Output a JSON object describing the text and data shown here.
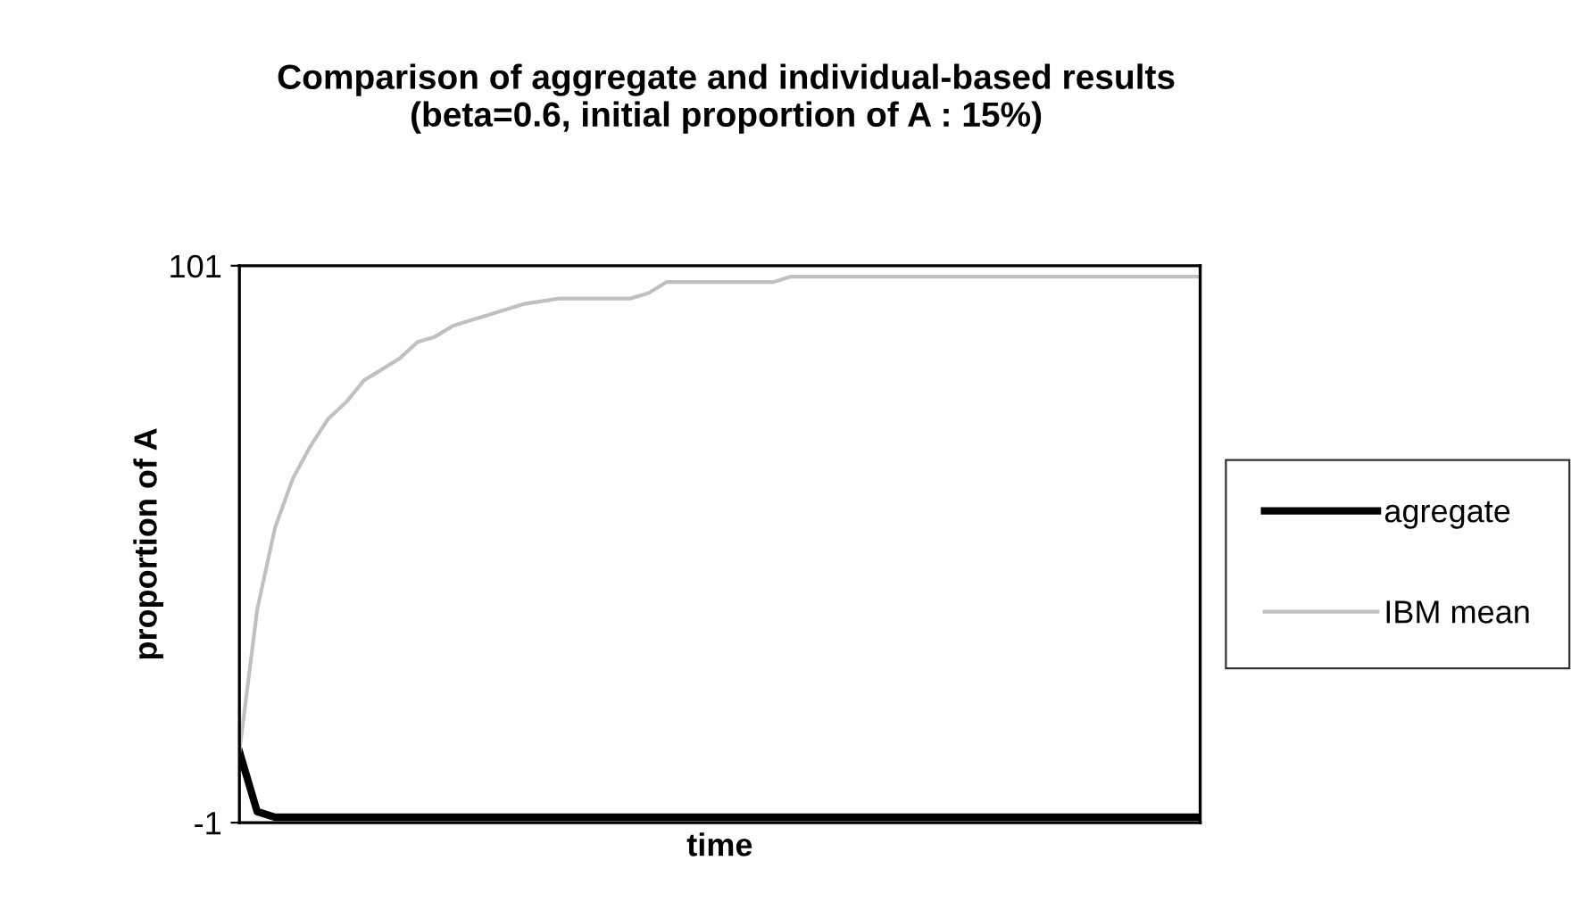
{
  "chart_data": {
    "type": "line",
    "title": "Comparison of aggregate and individual-based results\n(beta=0.6, initial proportion of A : 15%)",
    "xlabel": "time",
    "ylabel": "proportion of A",
    "categories": [
      null,
      null,
      null,
      null,
      null,
      null,
      null,
      null,
      null,
      null,
      null,
      null,
      null,
      null,
      null,
      null,
      null,
      null,
      null,
      null,
      null,
      null,
      null,
      null,
      null,
      null,
      null,
      null,
      null,
      null,
      null,
      null,
      null,
      null,
      null,
      null,
      null,
      null,
      null,
      null,
      null,
      null,
      null,
      null,
      null,
      null,
      null,
      null,
      null,
      null,
      null,
      null,
      null,
      null,
      null
    ],
    "series": [
      {
        "name": "agregate",
        "color": "#000000",
        "values": [
          12,
          1,
          0,
          0,
          0,
          0,
          0,
          0,
          0,
          0,
          0,
          0,
          0,
          0,
          0,
          0,
          0,
          0,
          0,
          0,
          0,
          0,
          0,
          0,
          0,
          0,
          0,
          0,
          0,
          0,
          0,
          0,
          0,
          0,
          0,
          0,
          0,
          0,
          0,
          0,
          0,
          0,
          0,
          0,
          0,
          0,
          0,
          0,
          0,
          0,
          0,
          0,
          0,
          0,
          0
        ]
      },
      {
        "name": "IBM mean",
        "color": "#c0c0c0",
        "values": [
          12,
          38,
          53,
          62,
          68,
          73,
          76,
          80,
          82,
          84,
          87,
          88,
          90,
          91,
          92,
          93,
          94,
          94.5,
          95,
          95,
          95,
          95,
          95,
          96,
          98,
          98,
          98,
          98,
          98,
          98,
          98,
          99,
          99,
          99,
          99,
          99,
          99,
          99,
          99,
          99,
          99,
          99,
          99,
          99,
          99,
          99,
          99,
          99,
          99,
          99,
          99,
          99,
          99,
          99,
          99
        ]
      }
    ],
    "ylim": [
      -1,
      101
    ],
    "yticks": [
      -1,
      101
    ],
    "tick_labels": "y",
    "legend": "right",
    "grid": false
  }
}
